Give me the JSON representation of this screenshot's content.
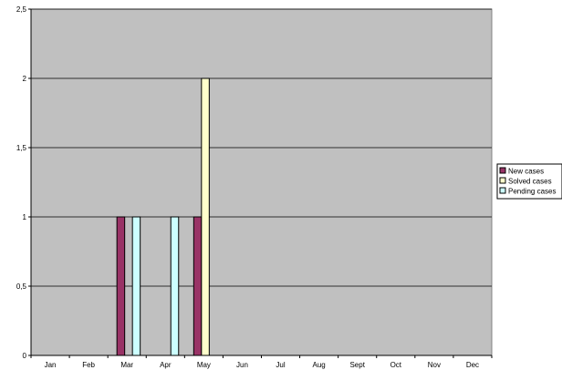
{
  "chart_data": {
    "type": "bar",
    "categories": [
      "Jan",
      "Feb",
      "Mar",
      "Apr",
      "May",
      "Jun",
      "Jul",
      "Aug",
      "Sept",
      "Oct",
      "Nov",
      "Dec"
    ],
    "series": [
      {
        "name": "New cases",
        "color": "#993366",
        "values": [
          0,
          0,
          1,
          0,
          1,
          0,
          0,
          0,
          0,
          0,
          0,
          0
        ]
      },
      {
        "name": "Solved cases",
        "color": "#FFFFCC",
        "values": [
          0,
          0,
          0,
          0,
          2,
          0,
          0,
          0,
          0,
          0,
          0,
          0
        ]
      },
      {
        "name": "Pending cases",
        "color": "#CCFFFF",
        "values": [
          0,
          0,
          1,
          1,
          0,
          0,
          0,
          0,
          0,
          0,
          0,
          0
        ]
      }
    ],
    "ylim": [
      0,
      2.5
    ],
    "yticks": [
      "0",
      "0,5",
      "1",
      "1,5",
      "2",
      "2,5"
    ],
    "ytick_values": [
      0,
      0.5,
      1,
      1.5,
      2,
      2.5
    ],
    "plot_background": "#C0C0C0",
    "grid": true,
    "legend_position": "right",
    "title": "",
    "xlabel": "",
    "ylabel": ""
  }
}
